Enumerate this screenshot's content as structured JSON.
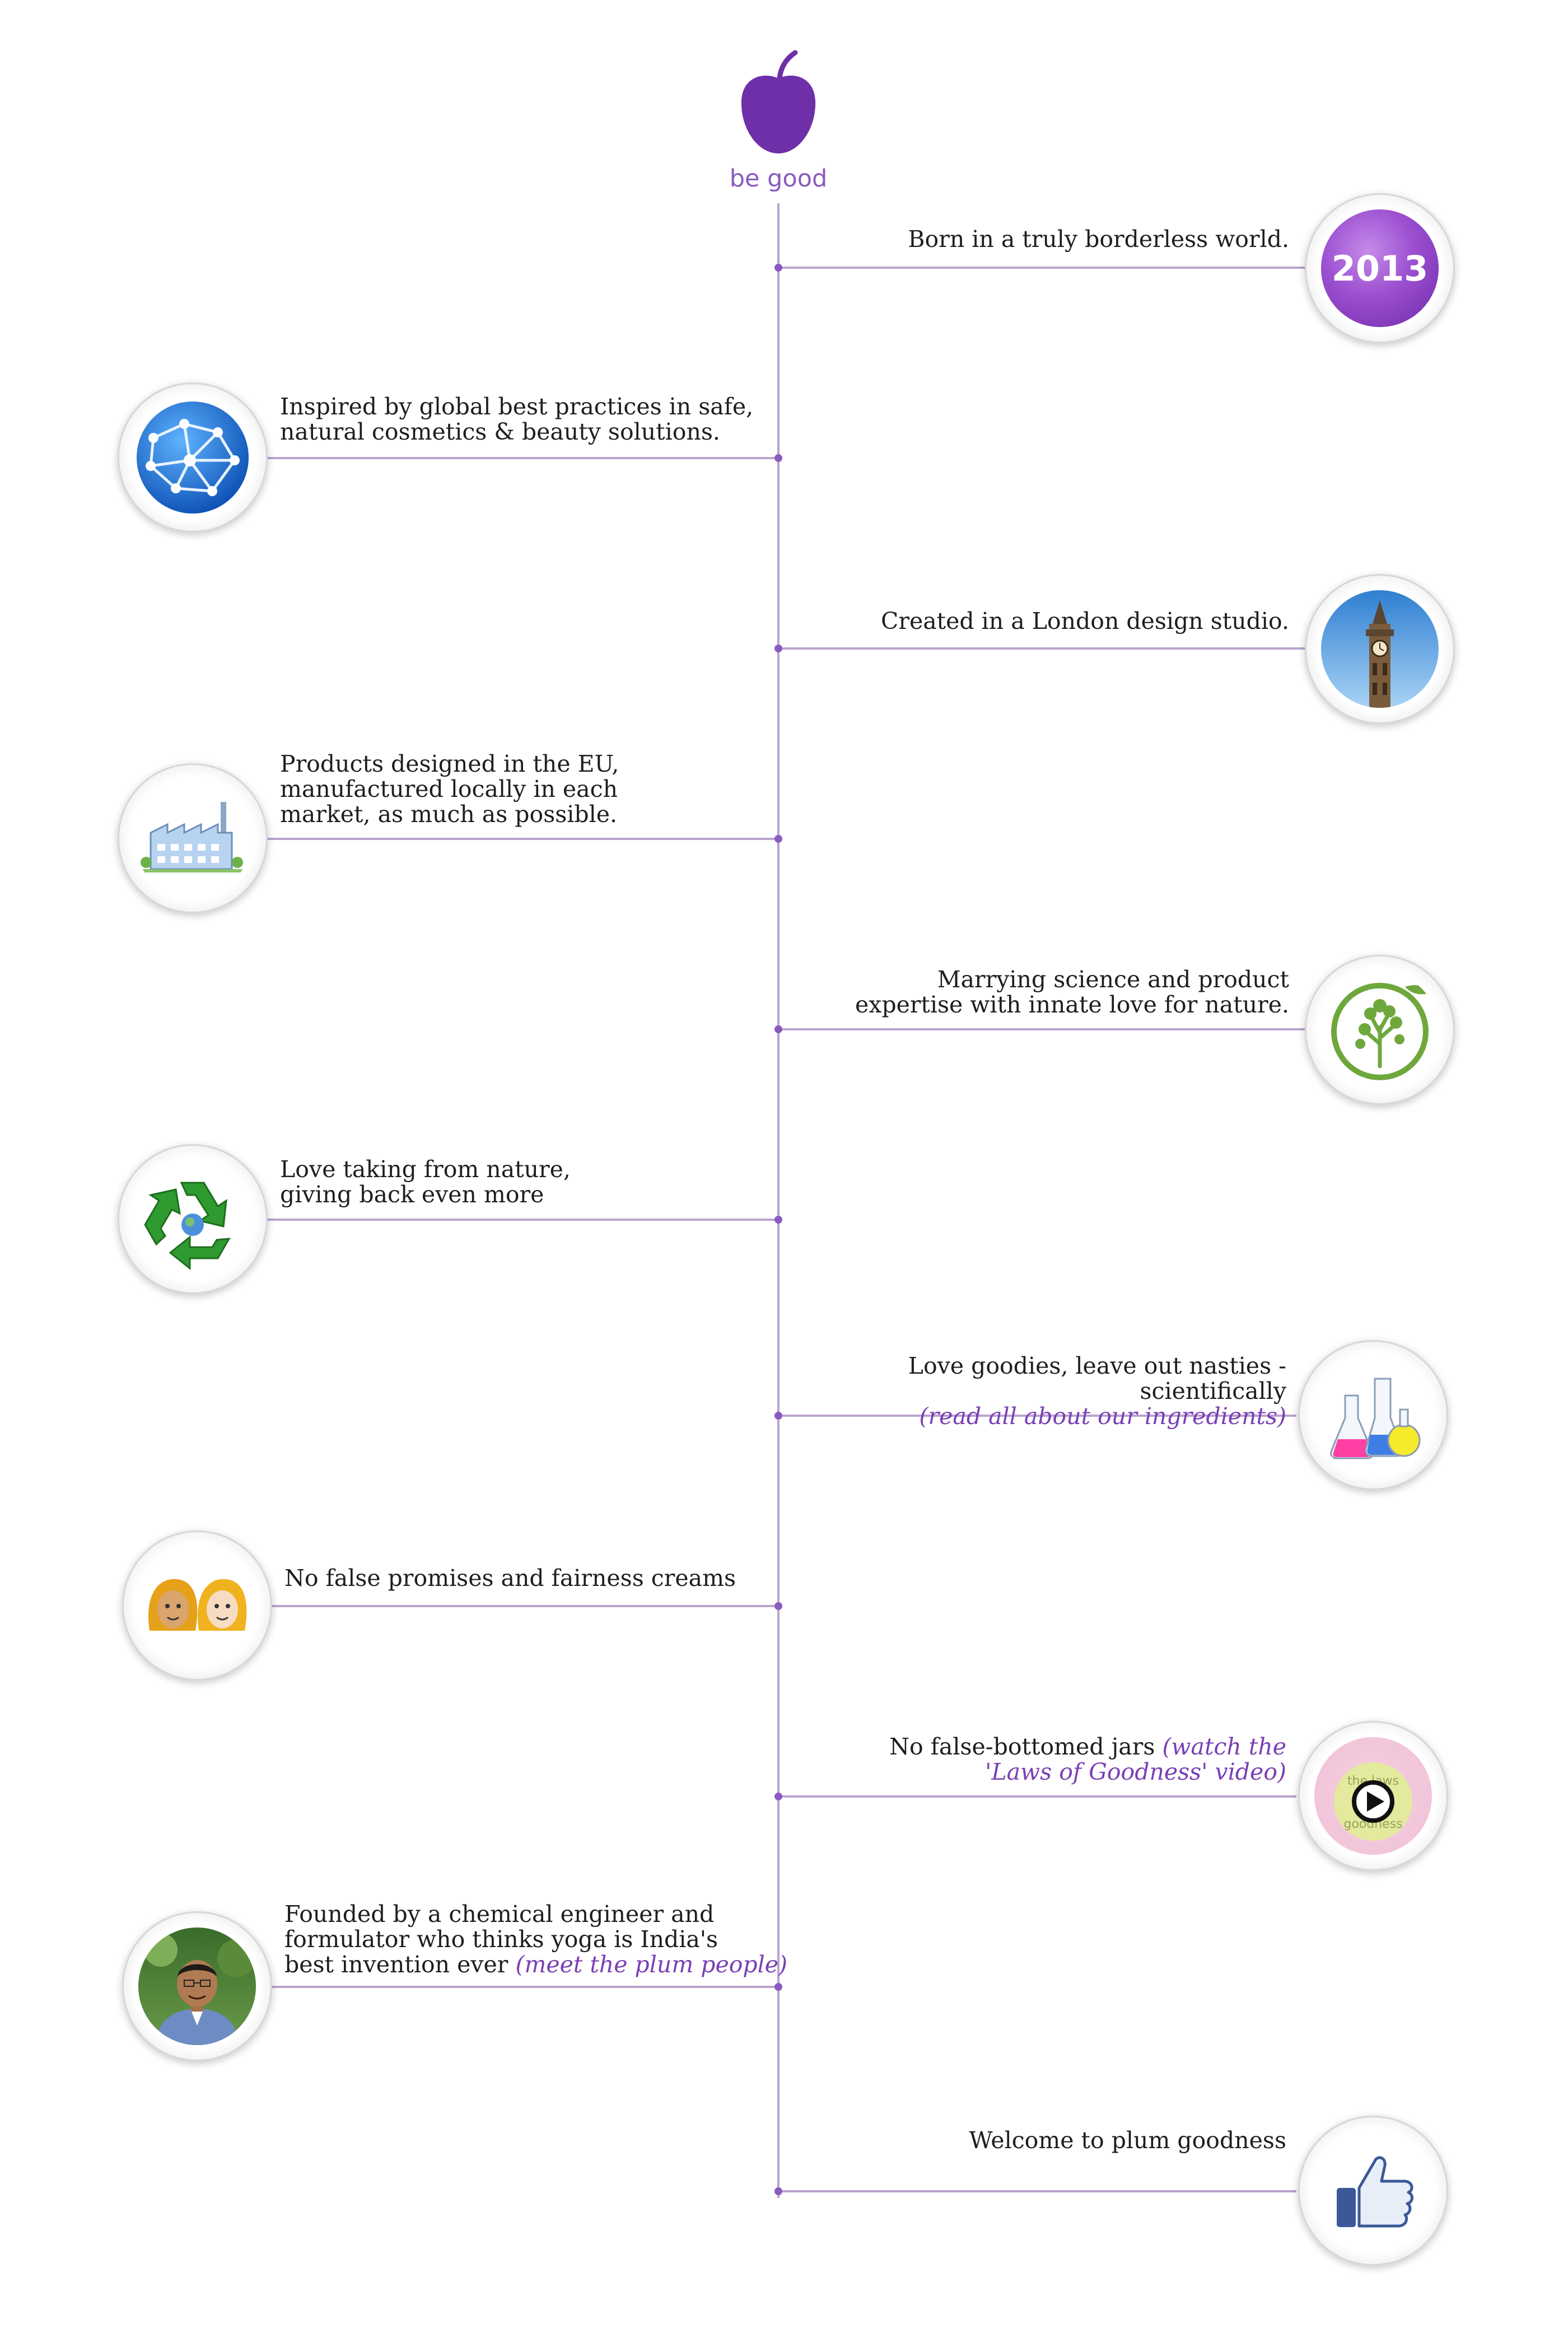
{
  "brand": {
    "tagline": "be good",
    "color": "#8a5bbf"
  },
  "timeline": [
    {
      "side": "right",
      "icon": "year-2013-badge",
      "year": "2013",
      "lines": [
        "Born  in a truly borderless world."
      ]
    },
    {
      "side": "left",
      "icon": "globe-network-icon",
      "lines": [
        "Inspired by global best practices in safe,",
        "natural cosmetics & beauty solutions."
      ]
    },
    {
      "side": "right",
      "icon": "big-ben-icon",
      "lines": [
        "Created in a London design studio."
      ]
    },
    {
      "side": "left",
      "icon": "factory-icon",
      "lines": [
        "Products designed in the EU,",
        "manufactured locally in each",
        "market, as much as possible."
      ]
    },
    {
      "side": "right",
      "icon": "tree-icon",
      "lines": [
        "Marrying science and product",
        "expertise with innate love for nature."
      ]
    },
    {
      "side": "left",
      "icon": "recycle-icon",
      "lines": [
        "Love taking from nature,",
        "giving back  even more"
      ]
    },
    {
      "side": "right",
      "icon": "lab-flasks-icon",
      "lines": [
        "Love goodies, leave out nasties - scientifically"
      ],
      "link": "(read all about our ingredients)"
    },
    {
      "side": "left",
      "icon": "two-faces-icon",
      "lines": [
        "No false promises and fairness creams"
      ]
    },
    {
      "side": "right",
      "icon": "video-play-icon",
      "lines": [
        "No false-bottomed jars"
      ],
      "link_lines": [
        "(watch the",
        "'Laws of Goodness' video)"
      ],
      "video_logo_text": [
        "the laws",
        "of",
        "goodness"
      ]
    },
    {
      "side": "left",
      "icon": "founder-photo",
      "lines": [
        "Founded by a chemical engineer and",
        "formulator who thinks yoga is India's",
        "best invention ever"
      ],
      "link": "(meet the plum people)"
    },
    {
      "side": "right",
      "icon": "thumbs-up-icon",
      "lines": [
        "Welcome to plum goodness"
      ]
    }
  ]
}
